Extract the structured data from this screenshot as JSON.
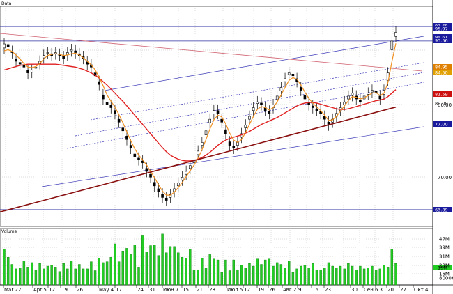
{
  "chart_data": [
    {
      "panel": "price",
      "title": "Data",
      "type": "candlestick",
      "x_labels": [
        "Mar 22",
        "Apr 5",
        "12",
        "19",
        "26",
        "May 4",
        "17",
        "24",
        "31",
        "Июн 7",
        "15",
        "21",
        "28",
        "Июл 5",
        "12",
        "19",
        "26",
        "Авг 2",
        "9",
        "16",
        "23",
        "30",
        "Сен 6",
        "13",
        "20",
        "27",
        "Окт 4"
      ],
      "y_ticks": [
        70,
        80
      ],
      "ylim": [
        61,
        99
      ],
      "horizontal_levels": [
        95.5,
        93.0,
        63.9
      ],
      "price_tags": [
        {
          "label": "97.68",
          "color": "#1a1a9c"
        },
        {
          "label": "95.97",
          "color": "#1a1a9c"
        },
        {
          "label": "94.61",
          "color": "#1a1a9c"
        },
        {
          "label": "93.56",
          "color": "#1a1a9c"
        },
        {
          "label": "84.95",
          "color": "#e08000"
        },
        {
          "label": "84.50",
          "color": "#e0a000"
        },
        {
          "label": "81.59",
          "color": "#cc1010"
        },
        {
          "label": "80.00",
          "color": "#ffffff"
        },
        {
          "label": "77.00",
          "color": "#1a1a9c"
        },
        {
          "label": "63.89",
          "color": "#1a1a9c"
        }
      ],
      "close": [
        92.5,
        92,
        91,
        89.5,
        89,
        88.5,
        87.5,
        88,
        88.5,
        89.5,
        90.5,
        91,
        90.5,
        91,
        90.5,
        90,
        91,
        91.5,
        91,
        90.5,
        90,
        89,
        88.5,
        87,
        85.5,
        83,
        82,
        81.5,
        80.5,
        79,
        77.5,
        76,
        74.5,
        73,
        72.5,
        72,
        70.5,
        69.5,
        68,
        67,
        66,
        65.5,
        66.5,
        67.5,
        68.5,
        69.5,
        70.5,
        71.5,
        72.5,
        74,
        75.5,
        77.5,
        79.5,
        81,
        80.5,
        79,
        77,
        75,
        74.5,
        75.5,
        77,
        78.5,
        80,
        81.5,
        82.5,
        82,
        81,
        80.5,
        82,
        83.5,
        85,
        86.5,
        87.5,
        87,
        86,
        84.5,
        83,
        82,
        81.5,
        81,
        80.5,
        79.5,
        78.5,
        79.5,
        80.5,
        81.5,
        82.5,
        83.5,
        84,
        83,
        82.5,
        83.5,
        84,
        84.5,
        84,
        83,
        84.5,
        87.5,
        93,
        94.5
      ],
      "open": [
        91.8,
        92.4,
        91.2,
        89.9,
        89.3,
        88.8,
        87.9,
        87.6,
        88.3,
        89.1,
        90.1,
        90.9,
        90.8,
        90.8,
        90.7,
        90.3,
        90.6,
        91.3,
        91.3,
        90.8,
        90.3,
        89.4,
        88.9,
        87.5,
        86,
        83.7,
        82.4,
        81.9,
        81,
        79.5,
        78,
        76.6,
        75,
        73.5,
        72.8,
        72.3,
        71,
        70,
        68.6,
        67.5,
        66.6,
        65.9,
        66,
        67,
        68,
        69,
        70,
        71,
        72,
        73.4,
        75,
        76.8,
        78.9,
        80.4,
        81,
        79.5,
        77.7,
        75.6,
        74.8,
        75,
        76.4,
        78,
        79.5,
        81,
        82.2,
        82.3,
        81.5,
        80.9,
        81.5,
        82.9,
        84.4,
        86,
        87.2,
        87.3,
        86.5,
        85,
        83.6,
        82.4,
        81.8,
        81.3,
        80.9,
        80,
        79,
        79,
        80,
        81,
        82,
        83,
        83.6,
        83.5,
        82.8,
        83,
        83.8,
        84.2,
        84.3,
        83.5,
        83.8,
        86.2,
        91.5,
        93.8
      ],
      "sma_short": [
        91.3,
        91.5,
        91.2,
        90.6,
        89.9,
        89.1,
        88.5,
        88.4,
        88.6,
        89.1,
        89.9,
        90.5,
        90.7,
        90.8,
        90.7,
        90.5,
        90.6,
        90.8,
        90.9,
        90.6,
        90.1,
        89.5,
        88.9,
        88,
        86.8,
        85.3,
        83.7,
        82.6,
        81.6,
        80.3,
        78.9,
        77.3,
        75.8,
        74.4,
        73.3,
        72.5,
        71.6,
        70.5,
        69.4,
        68.2,
        67.1,
        66.4,
        66.4,
        66.9,
        67.7,
        68.6,
        69.6,
        70.6,
        71.6,
        72.8,
        74.2,
        76,
        77.8,
        79.4,
        80.2,
        79.9,
        78.7,
        77.1,
        75.9,
        75.5,
        76,
        77.2,
        78.6,
        80,
        81.2,
        81.7,
        81.5,
        81.1,
        81.5,
        82.5,
        83.7,
        85,
        86.2,
        86.7,
        86.4,
        85.4,
        84.2,
        83.1,
        82.3,
        81.6,
        81,
        80.2,
        79.3,
        79.4,
        80,
        80.9,
        81.8,
        82.7,
        83.4,
        83.3,
        83,
        83.2,
        83.6,
        84,
        84.1,
        83.6,
        84,
        85.8,
        89.4,
        92.6
      ],
      "sma_long": [
        88,
        88.2,
        88.4,
        88.6,
        88.8,
        88.9,
        89,
        89,
        89,
        89,
        89,
        89,
        89,
        89,
        88.9,
        88.8,
        88.7,
        88.6,
        88.5,
        88.3,
        88.1,
        87.8,
        87.5,
        87.1,
        86.6,
        86,
        85.4,
        84.7,
        84,
        83.3,
        82.6,
        81.8,
        81,
        80.2,
        79.4,
        78.6,
        77.8,
        77,
        76.2,
        75.4,
        74.6,
        73.9,
        73.3,
        72.9,
        72.6,
        72.4,
        72.3,
        72.3,
        72.4,
        72.6,
        72.9,
        73.3,
        73.8,
        74.4,
        75,
        75.5,
        75.9,
        76.2,
        76.4,
        76.6,
        76.8,
        77.1,
        77.4,
        77.8,
        78.2,
        78.6,
        78.9,
        79.2,
        79.5,
        79.8,
        80.2,
        80.6,
        81,
        81.4,
        81.8,
        82.1,
        82.3,
        82.4,
        82.4,
        82.3,
        82.1,
        81.9,
        81.7,
        81.5,
        81.3,
        81.2,
        81.2,
        81.3,
        81.5,
        81.7,
        81.9,
        82.1,
        82.3,
        82.5,
        82.7,
        82.8,
        83,
        83.4,
        84,
        84.6
      ],
      "sma_200_start": 63.5,
      "sma_200_end": 81.6,
      "volume": [
        40,
        31,
        23,
        18,
        19,
        27,
        20,
        25,
        17,
        24,
        18,
        21,
        22,
        20,
        15,
        24,
        18,
        27,
        18,
        23,
        18,
        18,
        26,
        16,
        30,
        25,
        26,
        31,
        46,
        26,
        38,
        41,
        34,
        45,
        20,
        55,
        37,
        44,
        45,
        33,
        57,
        36,
        43,
        43,
        36,
        31,
        30,
        40,
        17,
        17,
        30,
        19,
        34,
        29,
        28,
        14,
        28,
        16,
        28,
        17,
        22,
        19,
        24,
        21,
        29,
        23,
        28,
        29,
        21,
        25,
        23,
        19,
        27,
        14,
        18,
        21,
        22,
        19,
        24,
        17,
        17,
        19,
        25,
        21,
        19,
        21,
        18,
        24,
        21,
        17,
        21,
        18,
        19,
        21,
        17,
        18,
        22,
        20,
        40,
        24
      ]
    },
    {
      "panel": "volume",
      "title": "Volume",
      "type": "bar",
      "y_ticks": [
        "47M",
        "39M",
        "31M",
        "23M",
        "15M",
        "8000K"
      ],
      "last_tag": "15M"
    }
  ]
}
